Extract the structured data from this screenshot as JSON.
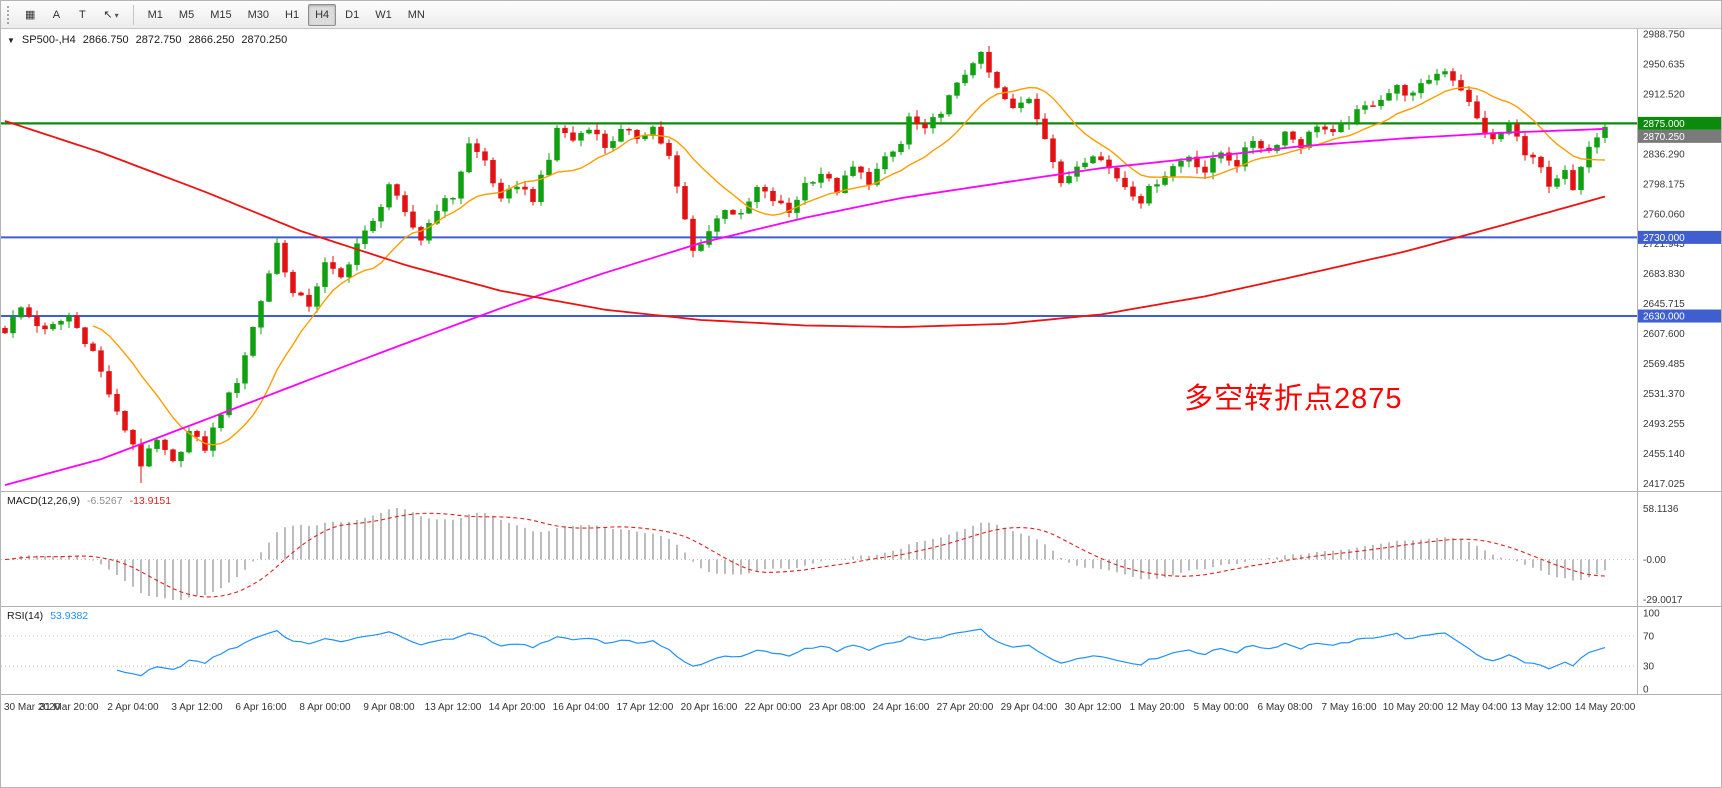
{
  "toolbar": {
    "tool_buttons": [
      {
        "name": "new-chart",
        "glyph": "▦"
      },
      {
        "name": "arrow-tool",
        "glyph": "A"
      },
      {
        "name": "text-tool",
        "glyph": "T"
      },
      {
        "name": "crosshair-tool",
        "glyph": "↖",
        "dropdown": "▾"
      }
    ],
    "timeframes": [
      "M1",
      "M5",
      "M15",
      "M30",
      "H1",
      "H4",
      "D1",
      "W1",
      "MN"
    ],
    "active_timeframe": "H4"
  },
  "chart_header": {
    "collapse_icon": "▼",
    "title": "SP500-,H4",
    "open": "2866.750",
    "high": "2872.750",
    "low": "2866.250",
    "close": "2870.250"
  },
  "annotation": {
    "text": "多空转折点2875"
  },
  "colors": {
    "candle_up": "#10a010",
    "candle_down": "#e31212",
    "ma_fast": "#ff9c00",
    "ma_mid": "#ff00ff",
    "ma_slow": "#ee1111",
    "price_box_bg": "#7a7a7a",
    "macd_hist": "#bcbcbc",
    "macd_signal": "#e02020",
    "rsi_line": "#1e90ff",
    "annotation": "#ff0000",
    "axis_line": "#b2b2b2",
    "level_dotted": "#c0c0c0"
  },
  "chart_data": [
    {
      "type": "candlestick",
      "panel": "main",
      "symbol": "SP500-",
      "timeframe": "H4",
      "ohlc_current": {
        "open": 2866.75,
        "high": 2872.75,
        "low": 2866.25,
        "close": 2870.25
      },
      "last_price": 2870.25,
      "current_price_label": "2870.250",
      "bars": 201,
      "price_range": {
        "top": 2995.0,
        "bottom": 2407.5
      },
      "y_ticks": [
        "2988.750",
        "2950.635",
        "2912.520",
        "2874.405",
        "2836.290",
        "2798.175",
        "2760.060",
        "2721.945",
        "2683.830",
        "2645.715",
        "2607.600",
        "2569.485",
        "2531.370",
        "2493.255",
        "2455.140",
        "2417.025"
      ],
      "x_labels": [
        "30 Mar 2020",
        "31 Mar 20:00",
        "2 Apr 04:00",
        "3 Apr 12:00",
        "6 Apr 16:00",
        "8 Apr 00:00",
        "9 Apr 08:00",
        "13 Apr 12:00",
        "14 Apr 20:00",
        "16 Apr 04:00",
        "17 Apr 12:00",
        "20 Apr 16:00",
        "22 Apr 00:00",
        "23 Apr 08:00",
        "24 Apr 16:00",
        "27 Apr 20:00",
        "29 Apr 04:00",
        "30 Apr 12:00",
        "1 May 20:00",
        "5 May 00:00",
        "6 May 08:00",
        "7 May 16:00",
        "10 May 20:00",
        "12 May 04:00",
        "13 May 12:00",
        "14 May 20:00"
      ],
      "bars_per_label": 8,
      "hlines": [
        {
          "price": 2875.0,
          "label": "2875.000",
          "color": "#0c8a0c",
          "width": 2.2
        },
        {
          "price": 2730.0,
          "label": "2730.000",
          "color": "#3f5fd0",
          "width": 2
        },
        {
          "price": 2630.0,
          "label": "2630.000",
          "color": "#3f5fd0",
          "width": 2
        }
      ],
      "close_path_anchors": [
        [
          0,
          2612
        ],
        [
          2,
          2640
        ],
        [
          5,
          2610
        ],
        [
          8,
          2630
        ],
        [
          11,
          2585
        ],
        [
          14,
          2505
        ],
        [
          16,
          2468
        ],
        [
          17,
          2442
        ],
        [
          19,
          2470
        ],
        [
          21,
          2442
        ],
        [
          23,
          2482
        ],
        [
          25,
          2462
        ],
        [
          27,
          2508
        ],
        [
          29,
          2548
        ],
        [
          31,
          2615
        ],
        [
          33,
          2685
        ],
        [
          34,
          2722
        ],
        [
          36,
          2658
        ],
        [
          38,
          2645
        ],
        [
          40,
          2695
        ],
        [
          42,
          2678
        ],
        [
          44,
          2722
        ],
        [
          46,
          2748
        ],
        [
          48,
          2798
        ],
        [
          50,
          2758
        ],
        [
          52,
          2728
        ],
        [
          54,
          2768
        ],
        [
          56,
          2782
        ],
        [
          58,
          2848
        ],
        [
          60,
          2828
        ],
        [
          62,
          2775
        ],
        [
          64,
          2798
        ],
        [
          66,
          2780
        ],
        [
          68,
          2828
        ],
        [
          69,
          2870
        ],
        [
          71,
          2854
        ],
        [
          73,
          2872
        ],
        [
          75,
          2846
        ],
        [
          77,
          2864
        ],
        [
          79,
          2858
        ],
        [
          81,
          2870
        ],
        [
          83,
          2832
        ],
        [
          85,
          2752
        ],
        [
          86,
          2712
        ],
        [
          88,
          2738
        ],
        [
          90,
          2768
        ],
        [
          92,
          2756
        ],
        [
          94,
          2792
        ],
        [
          96,
          2778
        ],
        [
          98,
          2762
        ],
        [
          100,
          2798
        ],
        [
          102,
          2812
        ],
        [
          104,
          2790
        ],
        [
          106,
          2818
        ],
        [
          108,
          2802
        ],
        [
          110,
          2828
        ],
        [
          112,
          2848
        ],
        [
          113,
          2882
        ],
        [
          115,
          2864
        ],
        [
          117,
          2892
        ],
        [
          119,
          2922
        ],
        [
          121,
          2955
        ],
        [
          122,
          2960
        ],
        [
          124,
          2918
        ],
        [
          126,
          2892
        ],
        [
          128,
          2908
        ],
        [
          130,
          2860
        ],
        [
          132,
          2795
        ],
        [
          134,
          2822
        ],
        [
          136,
          2838
        ],
        [
          138,
          2818
        ],
        [
          140,
          2796
        ],
        [
          142,
          2778
        ],
        [
          144,
          2802
        ],
        [
          146,
          2820
        ],
        [
          148,
          2834
        ],
        [
          150,
          2814
        ],
        [
          152,
          2838
        ],
        [
          154,
          2824
        ],
        [
          156,
          2854
        ],
        [
          158,
          2840
        ],
        [
          160,
          2864
        ],
        [
          162,
          2848
        ],
        [
          164,
          2874
        ],
        [
          166,
          2860
        ],
        [
          168,
          2880
        ],
        [
          170,
          2895
        ],
        [
          172,
          2908
        ],
        [
          174,
          2920
        ],
        [
          176,
          2910
        ],
        [
          178,
          2932
        ],
        [
          180,
          2944
        ],
        [
          182,
          2920
        ],
        [
          184,
          2880
        ],
        [
          186,
          2852
        ],
        [
          188,
          2872
        ],
        [
          190,
          2840
        ],
        [
          192,
          2818
        ],
        [
          193,
          2790
        ],
        [
          195,
          2812
        ],
        [
          196,
          2788
        ],
        [
          198,
          2844
        ],
        [
          199,
          2858
        ],
        [
          200,
          2870.25
        ]
      ],
      "ma_fast_period": 12,
      "ma_mid_anchors": [
        [
          0,
          2415
        ],
        [
          12,
          2448
        ],
        [
          25,
          2498
        ],
        [
          37,
          2545
        ],
        [
          50,
          2595
        ],
        [
          62,
          2640
        ],
        [
          75,
          2685
        ],
        [
          87,
          2723
        ],
        [
          100,
          2755
        ],
        [
          112,
          2780
        ],
        [
          125,
          2800
        ],
        [
          137,
          2818
        ],
        [
          150,
          2832
        ],
        [
          162,
          2846
        ],
        [
          175,
          2856
        ],
        [
          187,
          2863
        ],
        [
          200,
          2868
        ]
      ],
      "ma_slow_anchors": [
        [
          0,
          2878
        ],
        [
          12,
          2838
        ],
        [
          25,
          2788
        ],
        [
          37,
          2738
        ],
        [
          50,
          2695
        ],
        [
          62,
          2662
        ],
        [
          75,
          2638
        ],
        [
          87,
          2625
        ],
        [
          100,
          2618
        ],
        [
          112,
          2616
        ],
        [
          125,
          2620
        ],
        [
          137,
          2632
        ],
        [
          150,
          2655
        ],
        [
          162,
          2682
        ],
        [
          175,
          2712
        ],
        [
          187,
          2745
        ],
        [
          200,
          2782
        ]
      ]
    },
    {
      "type": "macd",
      "panel": "indicator-1",
      "label": "MACD(12,26,9)",
      "value_main": "-6.5267",
      "value_signal": "-13.9151",
      "params": {
        "fast": 12,
        "slow": 26,
        "signal": 9
      },
      "axis_labels": [
        "58.1136",
        "-0.00",
        "-29.0017"
      ]
    },
    {
      "type": "rsi",
      "panel": "indicator-2",
      "label": "RSI(14)",
      "value": "53.9382",
      "period": 14,
      "levels": [
        70,
        30
      ],
      "axis_labels": [
        "100",
        "70",
        "30",
        "0"
      ]
    }
  ]
}
